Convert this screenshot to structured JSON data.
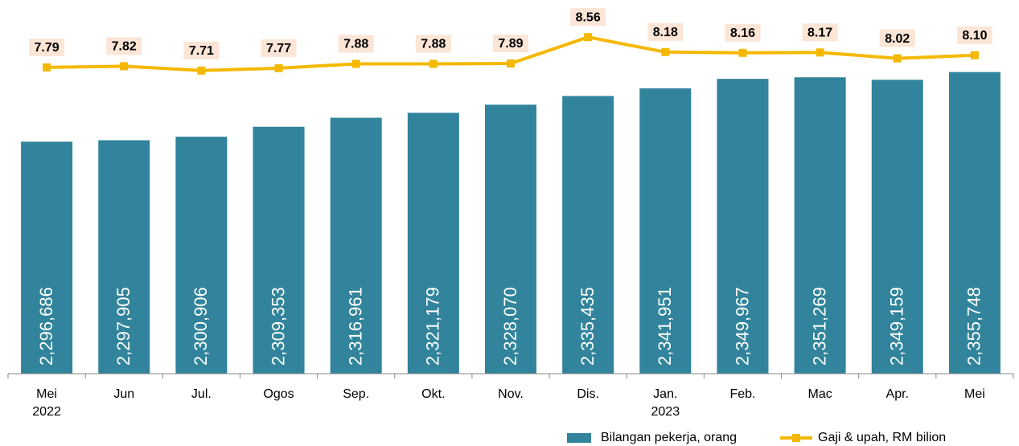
{
  "chart_data": {
    "type": "bar_line",
    "categories": [
      "Mei\n2022",
      "Jun",
      "Jul.",
      "Ogos",
      "Sep.",
      "Okt.",
      "Nov.",
      "Dis.",
      "Jan.\n2023",
      "Feb.",
      "Mac",
      "Apr.",
      "Mei"
    ],
    "ylim": [
      2100000,
      2410000
    ],
    "y2lim": [
      0,
      9.3
    ],
    "series": [
      {
        "name": "Bilangan pekerja, orang",
        "type": "bar",
        "color": "#31849b",
        "values": [
          2296686,
          2297905,
          2300906,
          2309353,
          2316961,
          2321179,
          2328070,
          2335435,
          2341951,
          2349967,
          2351269,
          2349159,
          2355748
        ],
        "value_labels": [
          "2,296,686",
          "2,297,905",
          "2,300,906",
          "2,309,353",
          "2,316,961",
          "2,321,179",
          "2,328,070",
          "2,335,435",
          "2,341,951",
          "2,349,967",
          "2,351,269",
          "2,349,159",
          "2,355,748"
        ]
      },
      {
        "name": "Gaji & upah, RM bilion",
        "type": "line",
        "axis": "y2",
        "color": "#f5b800",
        "values": [
          7.79,
          7.82,
          7.71,
          7.77,
          7.88,
          7.88,
          7.89,
          8.56,
          8.18,
          8.16,
          8.17,
          8.02,
          8.1
        ],
        "value_labels": [
          "7.79",
          "7.82",
          "7.71",
          "7.77",
          "7.88",
          "7.88",
          "7.89",
          "8.56",
          "8.18",
          "8.16",
          "8.17",
          "8.02",
          "8.10"
        ]
      }
    ]
  }
}
